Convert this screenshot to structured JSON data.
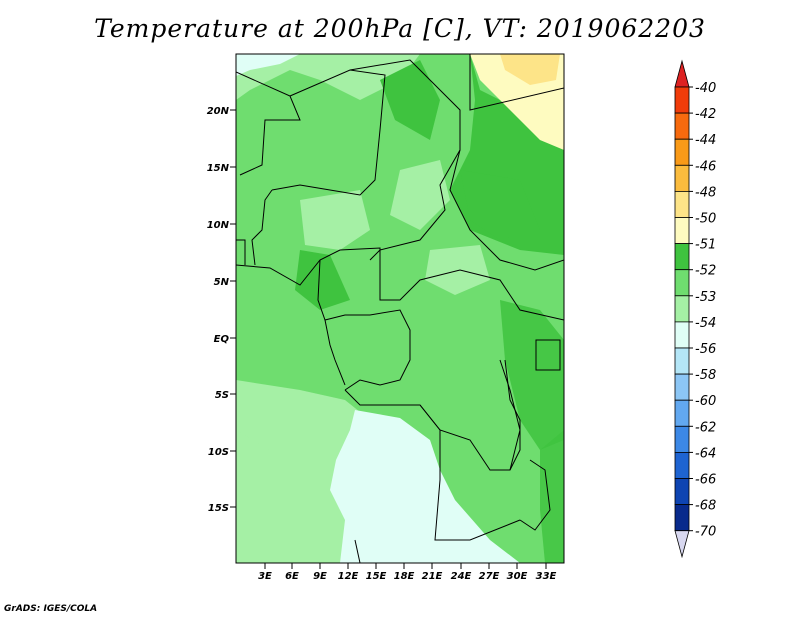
{
  "title": "Temperature at 200hPa [C], VT: 2019062203",
  "credit": "GrADS: IGES/COLA",
  "map": {
    "lat_labels": [
      "20N",
      "15N",
      "10N",
      "5N",
      "EQ",
      "5S",
      "10S",
      "15S"
    ],
    "lon_labels": [
      "3E",
      "6E",
      "9E",
      "12E",
      "15E",
      "18E",
      "21E",
      "24E",
      "27E",
      "30E",
      "33E"
    ],
    "lat_range": [
      -20,
      25
    ],
    "lon_range": [
      0,
      35
    ]
  },
  "colorbar": {
    "labels": [
      "-40",
      "-42",
      "-44",
      "-46",
      "-48",
      "-50",
      "-51",
      "-52",
      "-53",
      "-54",
      "-56",
      "-58",
      "-60",
      "-62",
      "-64",
      "-66",
      "-68",
      "-70"
    ],
    "colors": [
      "#e00000",
      "#f03c0a",
      "#f76a0e",
      "#f99a18",
      "#fbbc3e",
      "#fde488",
      "#fefbc0",
      "#3fc33f",
      "#6fdd6f",
      "#a5f0a5",
      "#e0fef6",
      "#b4e6f7",
      "#8cc6f5",
      "#62a8f0",
      "#3c88e6",
      "#1e64d2",
      "#0e44b2",
      "#082a8c"
    ],
    "top_color": "#dd2222",
    "bottom_color": "#d8d8f0"
  }
}
